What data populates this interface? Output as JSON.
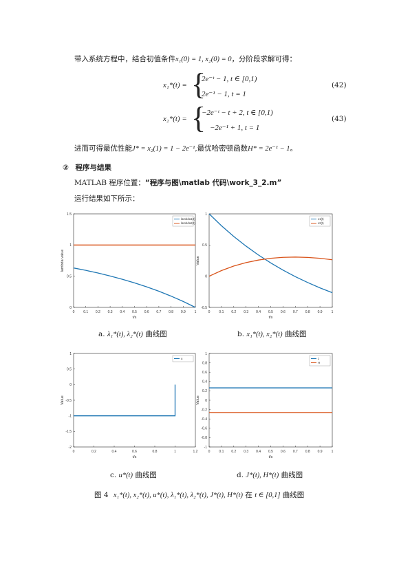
{
  "paragraph1": {
    "prefix": "带入系统方程中，结合初值条件",
    "math": "x₁(0) = 1, x₂(0) = 0",
    "suffix": "，分阶段求解可得："
  },
  "eq42": {
    "lhs": "x₁*(t) =",
    "case1": "2e⁻ᵗ − 1, t ∈ [0,1)",
    "case2": "2e⁻¹ − 1, t = 1",
    "number": "(42)"
  },
  "eq43": {
    "lhs": "x₂*(t) =",
    "case1": "−2e⁻ᵗ − t + 2, t ∈ [0,1)",
    "case2": "−2e⁻¹ + 1, t = 1",
    "number": "(43)"
  },
  "paragraph2": {
    "p1": "进而可得最优性能",
    "m1": "J* = x₂(1) = 1 − 2e⁻¹",
    "p2": ",最优哈密顿函数",
    "m2": "H* = 2e⁻¹ − 1",
    "p3": "。"
  },
  "section": {
    "marker": "②",
    "title": "程序与结果"
  },
  "program": {
    "label": "MATLAB 程序位置：",
    "path": "“程序与图\\matlab 代码\\work_3_2.m”"
  },
  "results_intro": "运行结果如下所示：",
  "charts": [
    {
      "caption_prefix": "a.",
      "caption_math": "λ₁*(t), λ₂*(t)",
      "caption_suffix": "曲线图"
    },
    {
      "caption_prefix": "b.",
      "caption_math": "x₁*(t), x₂*(t)",
      "caption_suffix": "曲线图"
    },
    {
      "caption_prefix": "c.",
      "caption_math": "u*(t)",
      "caption_suffix": "曲线图"
    },
    {
      "caption_prefix": "d.",
      "caption_math": "J*(t), H*(t)",
      "caption_suffix": "曲线图"
    }
  ],
  "figure_caption": {
    "label": "图 4",
    "math": "x₁*(t), x₂*(t), u*(t), λ₁*(t), λ₂*(t), J*(t), H*(t)",
    "mid": "在",
    "range": "t ∈ [0,1]",
    "suffix": "曲线图"
  },
  "colors": {
    "blue": "#1f77b4",
    "orange": "#d95319"
  },
  "chart_data": [
    {
      "type": "line",
      "xlabel": "t/s",
      "ylabel": "lambda value",
      "xlim": [
        0,
        1
      ],
      "ylim": [
        0,
        1.5
      ],
      "xticks": [
        "0",
        "0.1",
        "0.2",
        "0.3",
        "0.4",
        "0.5",
        "0.6",
        "0.7",
        "0.8",
        "0.9",
        "1"
      ],
      "yticks": [
        "0",
        "0.5",
        "1",
        "1.5"
      ],
      "legend": "top-right",
      "series": [
        {
          "name": "lambda1(t)",
          "color": "#1f77b4",
          "x": [
            0,
            0.1,
            0.2,
            0.3,
            0.4,
            0.5,
            0.6,
            0.7,
            0.8,
            0.9,
            1
          ],
          "y": [
            0.632,
            0.594,
            0.551,
            0.503,
            0.451,
            0.393,
            0.329,
            0.259,
            0.181,
            0.095,
            0.0
          ]
        },
        {
          "name": "lambda2(t)",
          "color": "#d95319",
          "x": [
            0,
            1
          ],
          "y": [
            1,
            1
          ]
        }
      ]
    },
    {
      "type": "line",
      "xlabel": "t/s",
      "ylabel": "Value",
      "xlim": [
        0,
        1
      ],
      "ylim": [
        -0.5,
        1
      ],
      "xticks": [
        "0",
        "0.1",
        "0.2",
        "0.3",
        "0.4",
        "0.5",
        "0.6",
        "0.7",
        "0.8",
        "0.9",
        "1"
      ],
      "yticks": [
        "-0.5",
        "0",
        "0.5",
        "1"
      ],
      "legend": "top-right",
      "series": [
        {
          "name": "x1(t)",
          "color": "#1f77b4",
          "x": [
            0,
            0.1,
            0.2,
            0.3,
            0.4,
            0.5,
            0.6,
            0.7,
            0.8,
            0.9,
            1
          ],
          "y": [
            1,
            0.81,
            0.637,
            0.482,
            0.341,
            0.213,
            0.098,
            -0.007,
            -0.101,
            -0.187,
            -0.264
          ]
        },
        {
          "name": "x2(t)",
          "color": "#d95319",
          "x": [
            0,
            0.1,
            0.2,
            0.3,
            0.4,
            0.5,
            0.6,
            0.7,
            0.8,
            0.9,
            1
          ],
          "y": [
            0,
            0.09,
            0.163,
            0.218,
            0.259,
            0.287,
            0.302,
            0.307,
            0.301,
            0.287,
            0.264
          ]
        }
      ]
    },
    {
      "type": "line",
      "xlabel": "t/s",
      "ylabel": "Value",
      "xlim": [
        0,
        1.2
      ],
      "ylim": [
        -2,
        1
      ],
      "xticks": [
        "0",
        "0.2",
        "0.4",
        "0.6",
        "0.8",
        "1",
        "1.2"
      ],
      "yticks": [
        "-2",
        "-1.5",
        "-1",
        "-0.5",
        "0",
        "0.5",
        "1"
      ],
      "legend": "top-right",
      "series": [
        {
          "name": "u",
          "color": "#1f77b4",
          "x": [
            0,
            1,
            1
          ],
          "y": [
            -1,
            -1,
            0
          ]
        }
      ]
    },
    {
      "type": "line",
      "xlabel": "t/s",
      "ylabel": "Value",
      "xlim": [
        0,
        1
      ],
      "ylim": [
        -1,
        1
      ],
      "xticks": [
        "0",
        "0.1",
        "0.2",
        "0.3",
        "0.4",
        "0.5",
        "0.6",
        "0.7",
        "0.8",
        "0.9",
        "1"
      ],
      "yticks": [
        "-1",
        "-0.8",
        "-0.6",
        "-0.4",
        "-0.2",
        "0",
        "0.2",
        "0.4",
        "0.6",
        "0.8",
        "1"
      ],
      "legend": "top-right",
      "series": [
        {
          "name": "J",
          "color": "#1f77b4",
          "x": [
            0,
            1
          ],
          "y": [
            0.264,
            0.264
          ]
        },
        {
          "name": "H",
          "color": "#d95319",
          "x": [
            0,
            1
          ],
          "y": [
            -0.264,
            -0.264
          ]
        }
      ]
    }
  ]
}
